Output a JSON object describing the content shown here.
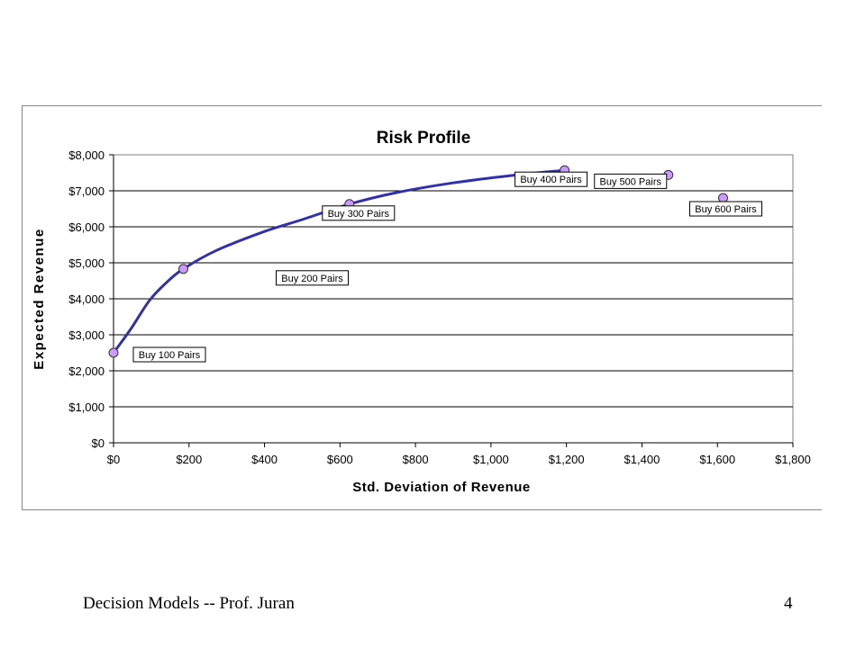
{
  "chart_data": {
    "type": "scatter",
    "title": "Risk Profile",
    "xlabel": "Std. Deviation of Revenue",
    "ylabel": "Expected Revenue",
    "xlim": [
      0,
      1800
    ],
    "ylim": [
      0,
      8000
    ],
    "x_ticks": [
      "$0",
      "$200",
      "$400",
      "$600",
      "$800",
      "$1,000",
      "$1,200",
      "$1,400",
      "$1,600",
      "$1,800"
    ],
    "y_ticks": [
      "$0",
      "$1,000",
      "$2,000",
      "$3,000",
      "$4,000",
      "$5,000",
      "$6,000",
      "$7,000",
      "$8,000"
    ],
    "grid": "horizontal",
    "series": [
      {
        "points": [
          {
            "label": "Buy 100 Pairs",
            "x": 0,
            "y": 2500
          },
          {
            "label": "Buy 200 Pairs",
            "x": 185,
            "y": 4830
          },
          {
            "label": "Buy 300 Pairs",
            "x": 625,
            "y": 6630
          },
          {
            "label": "Buy 400 Pairs",
            "x": 1195,
            "y": 7570
          },
          {
            "label": "Buy 500 Pairs",
            "x": 1470,
            "y": 7440
          },
          {
            "label": "Buy 600 Pairs",
            "x": 1615,
            "y": 6800
          }
        ]
      }
    ],
    "trend_line": {
      "color": "#333399",
      "points": [
        [
          0,
          2500
        ],
        [
          45,
          3150
        ],
        [
          95,
          3950
        ],
        [
          140,
          4450
        ],
        [
          185,
          4830
        ],
        [
          270,
          5330
        ],
        [
          400,
          5870
        ],
        [
          500,
          6200
        ],
        [
          625,
          6630
        ],
        [
          750,
          6950
        ],
        [
          900,
          7220
        ],
        [
          1050,
          7420
        ],
        [
          1195,
          7570
        ]
      ]
    },
    "marker_color": "#cc99ff",
    "marker_edge": "#333333"
  },
  "footer": {
    "left": "Decision Models --   Prof. Juran",
    "page_number": "4"
  }
}
